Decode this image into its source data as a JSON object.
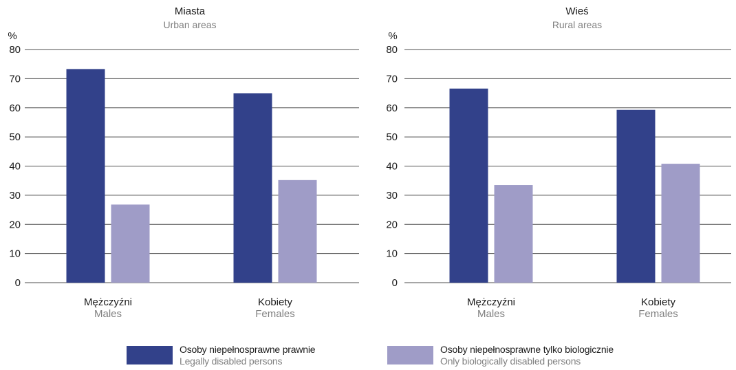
{
  "axis_unit": "%",
  "colors": {
    "legal": "#32418a",
    "bio": "#9f9cc7",
    "grid": "#4d4d4d",
    "text": "#1a1a1a",
    "sub": "#808080"
  },
  "legend": {
    "legal": {
      "pl": "Osoby niepełnosprawne prawnie",
      "en": "Legally disabled persons"
    },
    "bio": {
      "pl": "Osoby niepełnosprawne tylko biologicznie",
      "en": "Only biologically disabled persons"
    }
  },
  "chart_data": [
    {
      "type": "bar",
      "title": "Miasta",
      "subtitle": "Urban areas",
      "ylabel": "%",
      "ylim": [
        0,
        80
      ],
      "yticks": [
        0,
        10,
        20,
        30,
        40,
        50,
        60,
        70,
        80
      ],
      "grid": true,
      "categories": [
        {
          "pl": "Mężczyźni",
          "en": "Males"
        },
        {
          "pl": "Kobiety",
          "en": "Females"
        }
      ],
      "series": [
        {
          "key": "legal",
          "values": [
            73.3,
            65.0
          ]
        },
        {
          "key": "bio",
          "values": [
            26.8,
            35.2
          ]
        }
      ]
    },
    {
      "type": "bar",
      "title": "Wieś",
      "subtitle": "Rural areas",
      "ylabel": "%",
      "ylim": [
        0,
        80
      ],
      "yticks": [
        0,
        10,
        20,
        30,
        40,
        50,
        60,
        70,
        80
      ],
      "grid": true,
      "categories": [
        {
          "pl": "Mężczyźni",
          "en": "Males"
        },
        {
          "pl": "Kobiety",
          "en": "Females"
        }
      ],
      "series": [
        {
          "key": "legal",
          "values": [
            66.6,
            59.3
          ]
        },
        {
          "key": "bio",
          "values": [
            33.5,
            40.8
          ]
        }
      ]
    }
  ]
}
